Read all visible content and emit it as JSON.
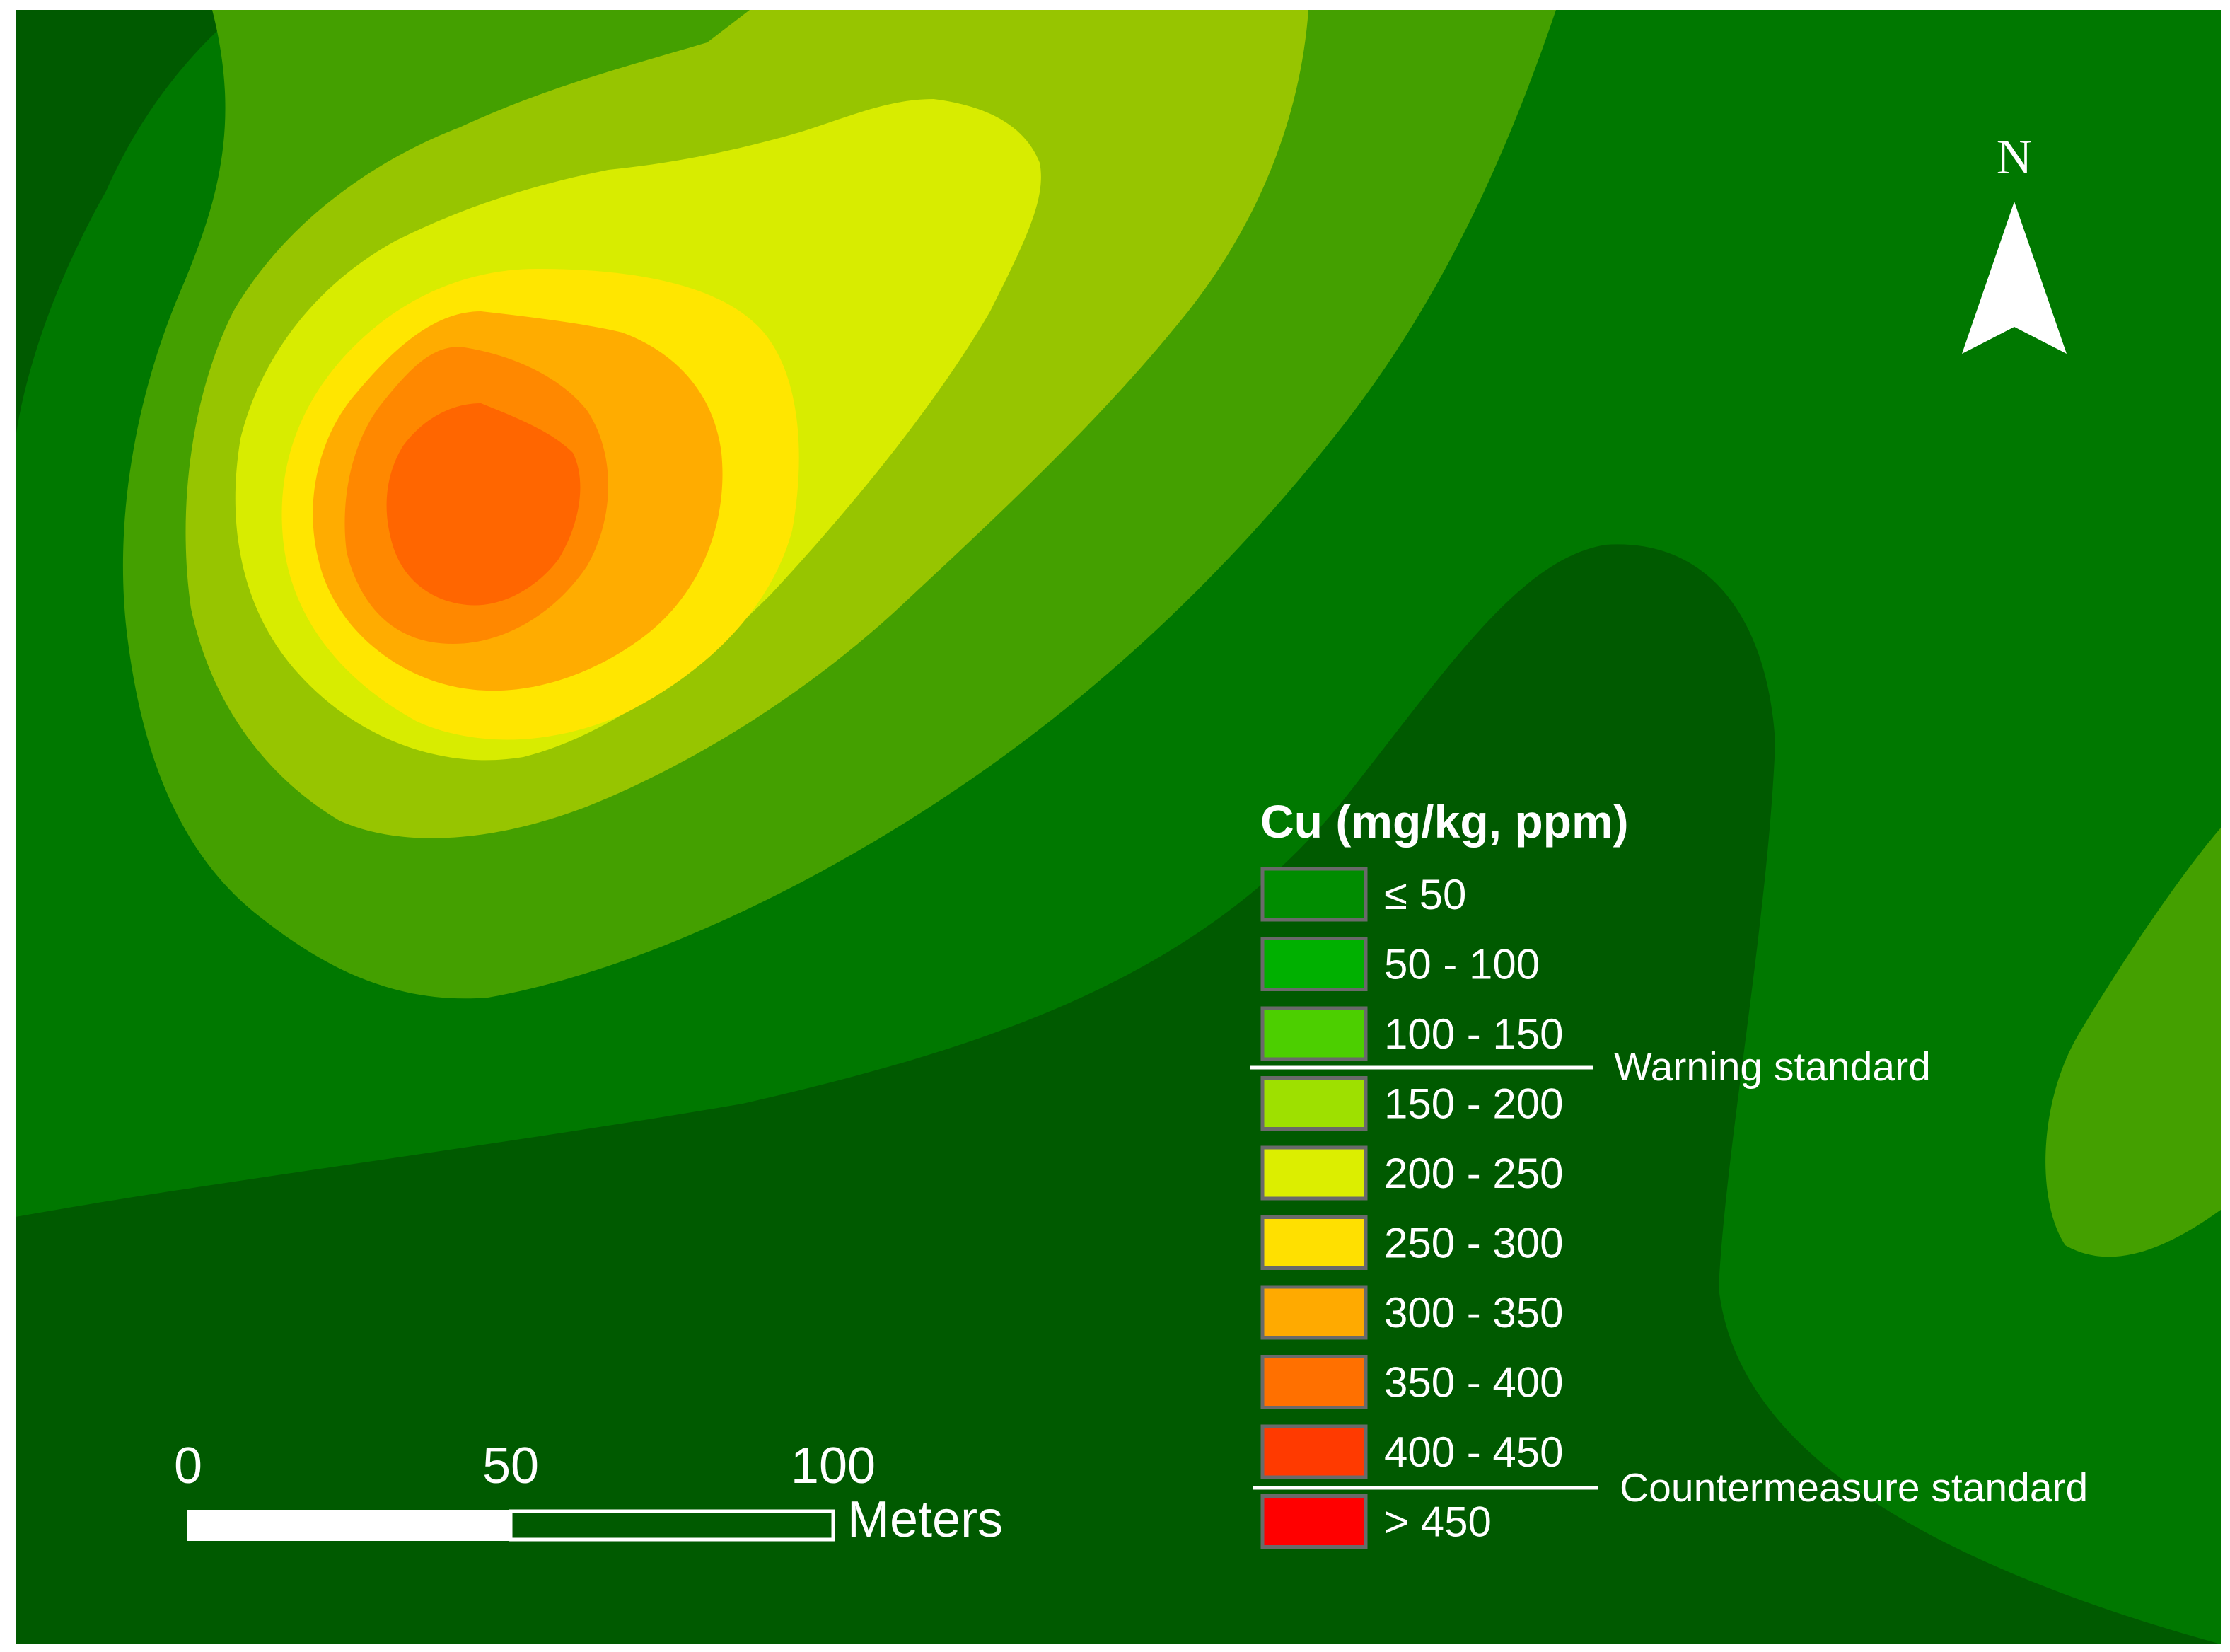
{
  "legend": {
    "title": "Cu (mg/kg, ppm)",
    "classes": [
      {
        "label": "≤ 50",
        "color": "#008c00"
      },
      {
        "label": "50 - 100",
        "color": "#00b000"
      },
      {
        "label": "100 - 150",
        "color": "#4ccf00"
      },
      {
        "label": "150 - 200",
        "color": "#9ee000"
      },
      {
        "label": "200 - 250",
        "color": "#dcee00"
      },
      {
        "label": "250 - 300",
        "color": "#ffe000"
      },
      {
        "label": "300 - 350",
        "color": "#ffaa00"
      },
      {
        "label": "350 - 400",
        "color": "#ff7000"
      },
      {
        "label": "400 - 450",
        "color": "#ff3a00"
      },
      {
        "label": "> 450",
        "color": "#ff0000"
      }
    ],
    "warning_standard": "Warning standard",
    "countermeasure_standard": "Countermeasure standard"
  },
  "scale_bar": {
    "ticks": [
      "0",
      "50",
      "100"
    ],
    "unit": "Meters"
  },
  "north_arrow": {
    "label": "N",
    "icon": "north-arrow-icon"
  },
  "zone_colors": {
    "darkest": "#005a00",
    "dark": "#007800",
    "mid": "#44a000",
    "light": "#97c500",
    "yellow_green": "#d8ec00",
    "yellow": "#ffe600",
    "orange": "#ffac00",
    "dark_orange": "#ff8800",
    "red_orange": "#ff6600"
  }
}
